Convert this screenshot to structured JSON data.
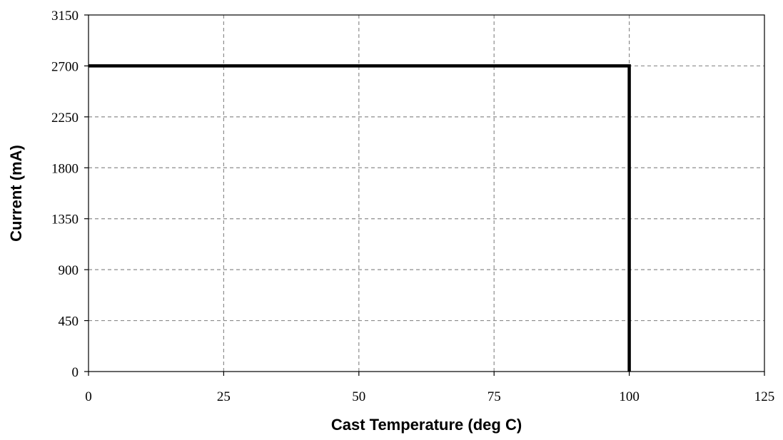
{
  "chart_data": {
    "type": "line",
    "xlabel": "Cast Temperature (deg C)",
    "ylabel": "Current (mA)",
    "xlim": [
      0,
      125
    ],
    "ylim": [
      0,
      3150
    ],
    "x_ticks": [
      "0",
      "25",
      "50",
      "75",
      "100",
      "125"
    ],
    "y_ticks": [
      "0",
      "450",
      "900",
      "1350",
      "1800",
      "2250",
      "2700",
      "3150"
    ],
    "grid": true,
    "series": [
      {
        "color": "#000000",
        "points": [
          {
            "x": 0,
            "y": 2700
          },
          {
            "x": 100,
            "y": 2700
          },
          {
            "x": 100,
            "y": 0
          }
        ]
      }
    ]
  }
}
